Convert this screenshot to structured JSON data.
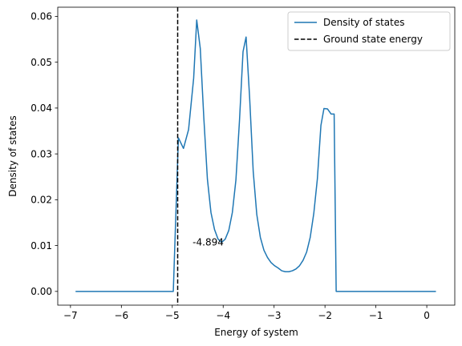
{
  "chart_data": {
    "type": "line",
    "title": "",
    "xlabel": "Energy of system",
    "ylabel": "Density of states",
    "xlim": [
      -7.25,
      0.55
    ],
    "ylim": [
      -0.003,
      0.062
    ],
    "xticks": [
      -7,
      -6,
      -5,
      -4,
      -3,
      -2,
      -1,
      0
    ],
    "xtick_labels": [
      "−7",
      "−6",
      "−5",
      "−4",
      "−3",
      "−2",
      "−1",
      "0"
    ],
    "yticks": [
      0.0,
      0.01,
      0.02,
      0.03,
      0.04,
      0.05,
      0.06
    ],
    "ytick_labels": [
      "0.00",
      "0.01",
      "0.02",
      "0.03",
      "0.04",
      "0.05",
      "0.06"
    ],
    "grid": false,
    "legend_position": "top-right",
    "series": [
      {
        "name": "Density of states",
        "color": "#1f77b4",
        "style": "solid",
        "x": [
          -6.9,
          -4.98,
          -4.88,
          -4.78,
          -4.68,
          -4.58,
          -4.52,
          -4.45,
          -4.38,
          -4.31,
          -4.24,
          -4.17,
          -4.1,
          -4.03,
          -3.96,
          -3.89,
          -3.82,
          -3.75,
          -3.68,
          -3.61,
          -3.55,
          -3.48,
          -3.41,
          -3.34,
          -3.27,
          -3.2,
          -3.13,
          -3.06,
          -2.99,
          -2.92,
          -2.85,
          -2.78,
          -2.71,
          -2.64,
          -2.57,
          -2.5,
          -2.43,
          -2.36,
          -2.29,
          -2.22,
          -2.15,
          -2.08,
          -2.02,
          -1.95,
          -1.88,
          -1.82,
          -1.78,
          -1.75,
          0.18
        ],
        "y": [
          0.0,
          0.0,
          0.0335,
          0.0312,
          0.0353,
          0.0465,
          0.0592,
          0.053,
          0.0378,
          0.0245,
          0.0172,
          0.0135,
          0.0114,
          0.0107,
          0.0114,
          0.0133,
          0.0172,
          0.0243,
          0.0372,
          0.0523,
          0.0555,
          0.0422,
          0.0262,
          0.0168,
          0.0118,
          0.009,
          0.0074,
          0.0063,
          0.0056,
          0.0051,
          0.0045,
          0.0043,
          0.0043,
          0.0045,
          0.0049,
          0.0056,
          0.0068,
          0.0086,
          0.0118,
          0.017,
          0.0245,
          0.0362,
          0.0399,
          0.0398,
          0.0387,
          0.0387,
          0.0,
          0.0,
          0.0
        ]
      },
      {
        "name": "Ground state energy",
        "color": "#000000",
        "style": "dashed",
        "vline_x": -4.894
      }
    ],
    "annotations": [
      {
        "text": "-4.894",
        "x": -4.6,
        "y": 0.01
      }
    ]
  }
}
